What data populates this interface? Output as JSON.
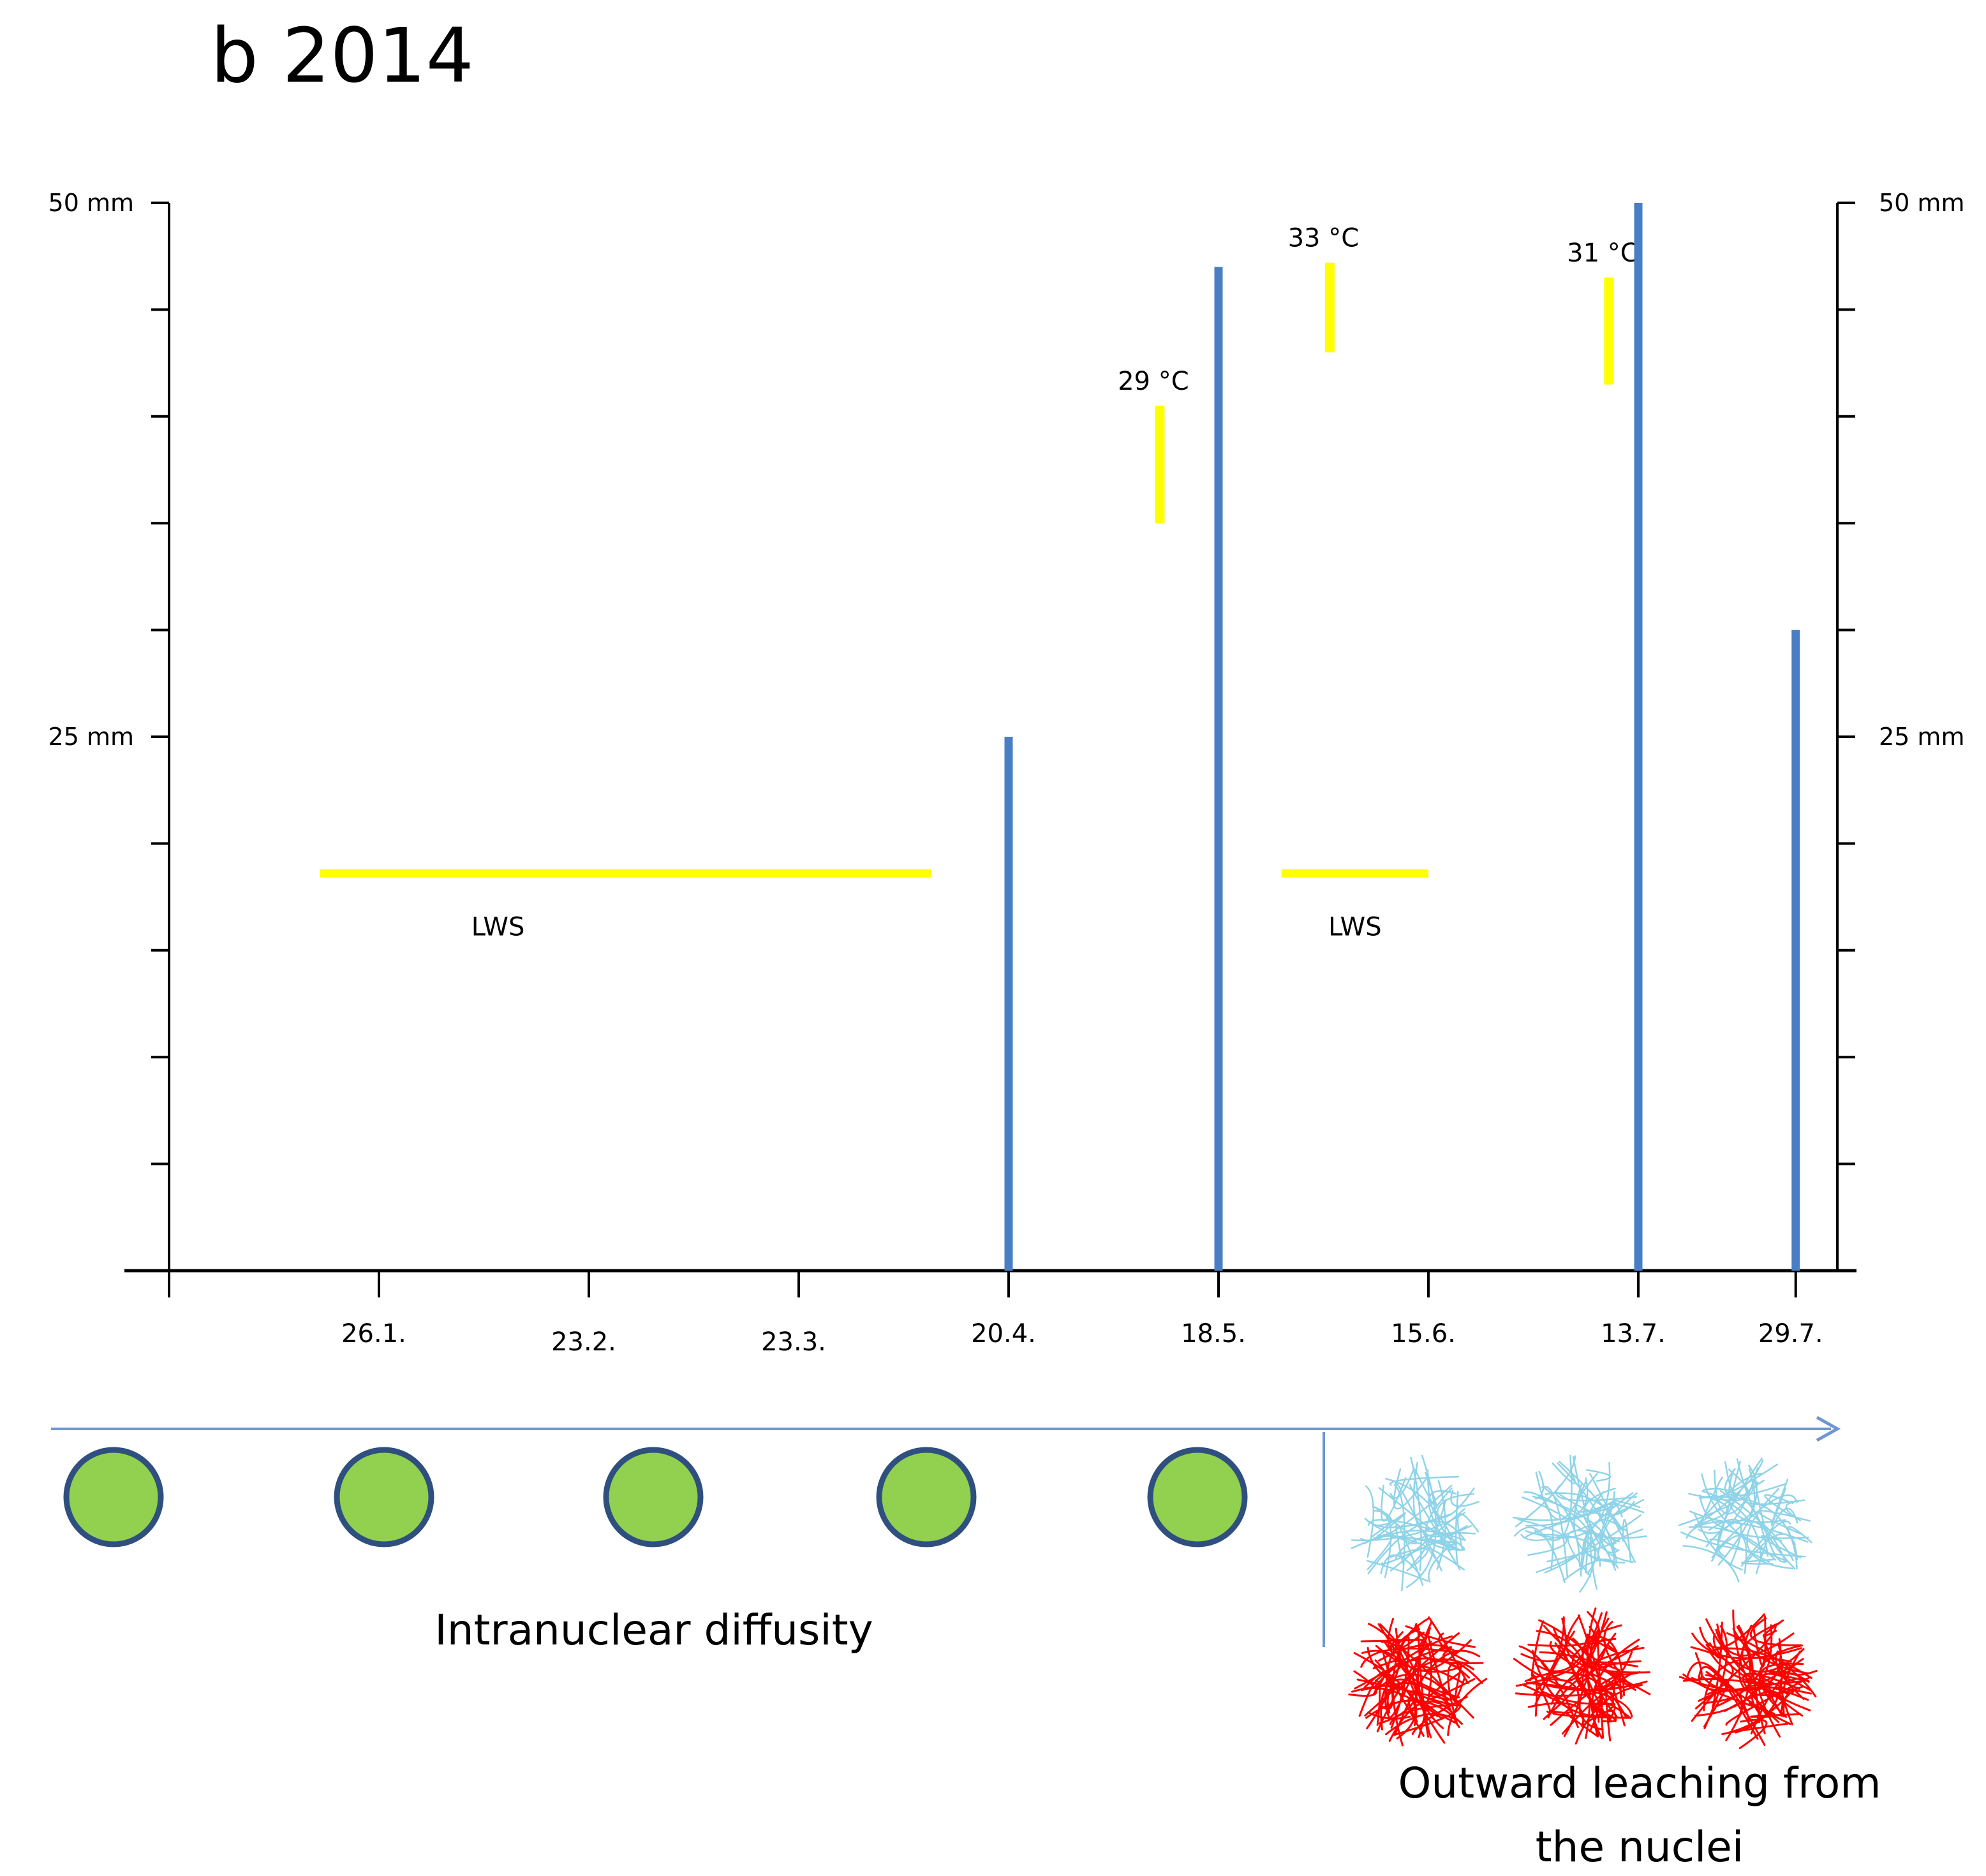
{
  "chart_data": {
    "type": "bar",
    "title": "b 2014",
    "y_unit": "mm",
    "ylim": [
      0,
      50
    ],
    "y_tick_step": 5,
    "y_labels": [
      {
        "value": 50,
        "text": "50 mm"
      },
      {
        "value": 25,
        "text": "25 mm"
      }
    ],
    "x_ticks": [
      {
        "pos": 1,
        "label": "26.1."
      },
      {
        "pos": 2,
        "label": "23.2."
      },
      {
        "pos": 3,
        "label": "23.3."
      },
      {
        "pos": 4,
        "label": "20.4."
      },
      {
        "pos": 5,
        "label": "18.5."
      },
      {
        "pos": 6,
        "label": "15.6."
      },
      {
        "pos": 7,
        "label": "13.7."
      },
      {
        "pos": 7.75,
        "label": "29.7."
      }
    ],
    "xlim": [
      0,
      7.95
    ],
    "precipitation_bars": [
      {
        "x": 4.0,
        "value": 25
      },
      {
        "x": 5.0,
        "value": 47
      },
      {
        "x": 7.0,
        "value": 50
      },
      {
        "x": 7.75,
        "value": 30
      }
    ],
    "temperature_markers": [
      {
        "x": 4.72,
        "y_from": 35,
        "y_to": 40.5,
        "label": "29 °C"
      },
      {
        "x": 5.53,
        "y_from": 43,
        "y_to": 47.2,
        "label": "33 °C"
      },
      {
        "x": 6.86,
        "y_from": 41.5,
        "y_to": 46.5,
        "label": "31 °C"
      }
    ],
    "lws_periods": [
      {
        "x_from": 0.72,
        "x_to": 3.63,
        "y": 18.6,
        "label": "LWS"
      },
      {
        "x_from": 5.3,
        "x_to": 6.0,
        "y": 18.6,
        "label": "LWS"
      }
    ],
    "colors": {
      "precipitation": "#4a7ec4",
      "temperature": "#ffff00",
      "lws": "#ffff00",
      "axis": "#000000",
      "timeline_arrow": "#6f96d0",
      "nucleus_fill": "#92d050",
      "nucleus_stroke": "#2f4f7f",
      "leaching_light": "#8fd3e8",
      "leaching_dark": "#ff0000"
    }
  },
  "timeline": {
    "nuclei_count": 5,
    "leaching_columns": 3,
    "left_caption": "Intranuclear diffusity",
    "right_caption_line1": "Outward leaching from",
    "right_caption_line2": "the nuclei"
  }
}
